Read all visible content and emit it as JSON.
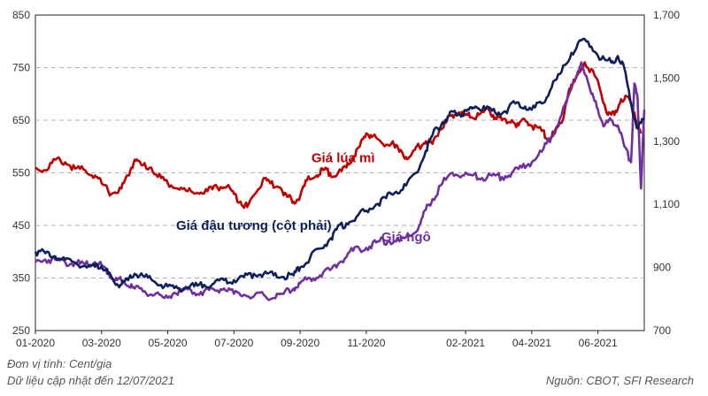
{
  "footer": {
    "unit_note": "Đơn vị tính: Cent/giạ",
    "update_note": "Dữ liệu cập nhật đến 12/07/2021",
    "source_note": "Nguồn: CBOT, SFI Research"
  },
  "chart_data": {
    "type": "line",
    "x_ticks": [
      "01-2020",
      "03-2020",
      "05-2020",
      "07-2020",
      "09-2020",
      "11-2020",
      "02-2021",
      "04-2021",
      "06-2021"
    ],
    "x_tick_months": [
      0,
      2,
      4,
      6,
      8,
      10,
      13,
      15,
      17
    ],
    "x_range_months": [
      0,
      18.4
    ],
    "ylim_left": [
      250,
      850
    ],
    "yticks_left": [
      250,
      350,
      450,
      550,
      650,
      750,
      850
    ],
    "ylim_right": [
      700,
      1700
    ],
    "yticks_right_labels": [
      "700",
      "900",
      "1,100",
      "1,300",
      "1,500",
      "1,700"
    ],
    "yticks_right_values": [
      700,
      900,
      1100,
      1300,
      1500,
      1700
    ],
    "gridlines": [
      350,
      450,
      550,
      650,
      750
    ],
    "series": [
      {
        "name": "Giá lúa mì",
        "axis": "left",
        "color": "#c00000",
        "points": [
          [
            0,
            560
          ],
          [
            0.3,
            555
          ],
          [
            0.6,
            575
          ],
          [
            0.9,
            570
          ],
          [
            1.2,
            558
          ],
          [
            1.5,
            555
          ],
          [
            1.8,
            545
          ],
          [
            2.0,
            530
          ],
          [
            2.3,
            510
          ],
          [
            2.6,
            520
          ],
          [
            2.8,
            545
          ],
          [
            3.0,
            575
          ],
          [
            3.2,
            565
          ],
          [
            3.5,
            560
          ],
          [
            3.8,
            540
          ],
          [
            4.0,
            530
          ],
          [
            4.3,
            520
          ],
          [
            4.6,
            515
          ],
          [
            4.9,
            512
          ],
          [
            5.2,
            515
          ],
          [
            5.5,
            522
          ],
          [
            5.8,
            525
          ],
          [
            6.0,
            510
          ],
          [
            6.2,
            495
          ],
          [
            6.4,
            485
          ],
          [
            6.7,
            515
          ],
          [
            6.9,
            540
          ],
          [
            7.1,
            530
          ],
          [
            7.4,
            522
          ],
          [
            7.6,
            505
          ],
          [
            7.8,
            495
          ],
          [
            8.0,
            505
          ],
          [
            8.2,
            535
          ],
          [
            8.5,
            545
          ],
          [
            8.7,
            555
          ],
          [
            8.9,
            550
          ],
          [
            9.1,
            545
          ],
          [
            9.4,
            560
          ],
          [
            9.6,
            580
          ],
          [
            9.8,
            600
          ],
          [
            10.0,
            625
          ],
          [
            10.2,
            620
          ],
          [
            10.5,
            605
          ],
          [
            10.8,
            610
          ],
          [
            11.0,
            590
          ],
          [
            11.2,
            580
          ],
          [
            11.4,
            590
          ],
          [
            11.6,
            600
          ],
          [
            11.8,
            610
          ],
          [
            12.0,
            605
          ],
          [
            12.2,
            630
          ],
          [
            12.4,
            645
          ],
          [
            12.6,
            660
          ],
          [
            12.8,
            665
          ],
          [
            13.0,
            660
          ],
          [
            13.2,
            655
          ],
          [
            13.4,
            660
          ],
          [
            13.7,
            670
          ],
          [
            13.9,
            655
          ],
          [
            14.1,
            650
          ],
          [
            14.4,
            650
          ],
          [
            14.6,
            640
          ],
          [
            14.8,
            650
          ],
          [
            15.0,
            640
          ],
          [
            15.3,
            630
          ],
          [
            15.5,
            615
          ],
          [
            15.7,
            625
          ],
          [
            15.9,
            645
          ],
          [
            16.1,
            700
          ],
          [
            16.3,
            725
          ],
          [
            16.6,
            760
          ],
          [
            16.9,
            735
          ],
          [
            17.1,
            700
          ],
          [
            17.3,
            660
          ],
          [
            17.5,
            660
          ],
          [
            17.7,
            690
          ],
          [
            17.9,
            695
          ],
          [
            18.1,
            665
          ],
          [
            18.3,
            625
          ]
        ]
      },
      {
        "name": "Giá đậu tương (cột phải)",
        "axis": "right",
        "color": "#0d1f5c",
        "points": [
          [
            0,
            950
          ],
          [
            0.3,
            945
          ],
          [
            0.6,
            935
          ],
          [
            0.9,
            925
          ],
          [
            1.2,
            915
          ],
          [
            1.5,
            905
          ],
          [
            1.8,
            902
          ],
          [
            2.0,
            905
          ],
          [
            2.2,
            880
          ],
          [
            2.4,
            850
          ],
          [
            2.6,
            845
          ],
          [
            2.8,
            860
          ],
          [
            3.0,
            880
          ],
          [
            3.3,
            870
          ],
          [
            3.6,
            855
          ],
          [
            3.9,
            840
          ],
          [
            4.2,
            835
          ],
          [
            4.5,
            835
          ],
          [
            4.8,
            840
          ],
          [
            5.1,
            845
          ],
          [
            5.4,
            850
          ],
          [
            5.7,
            860
          ],
          [
            6.0,
            860
          ],
          [
            6.3,
            870
          ],
          [
            6.6,
            880
          ],
          [
            6.9,
            880
          ],
          [
            7.2,
            875
          ],
          [
            7.5,
            870
          ],
          [
            7.8,
            875
          ],
          [
            8.0,
            900
          ],
          [
            8.3,
            930
          ],
          [
            8.6,
            960
          ],
          [
            8.9,
            990
          ],
          [
            9.1,
            1020
          ],
          [
            9.4,
            1040
          ],
          [
            9.7,
            1060
          ],
          [
            10.0,
            1080
          ],
          [
            10.3,
            1100
          ],
          [
            10.6,
            1120
          ],
          [
            10.9,
            1140
          ],
          [
            11.2,
            1160
          ],
          [
            11.5,
            1200
          ],
          [
            11.8,
            1270
          ],
          [
            12.0,
            1320
          ],
          [
            12.3,
            1360
          ],
          [
            12.5,
            1380
          ],
          [
            12.7,
            1390
          ],
          [
            12.9,
            1385
          ],
          [
            13.1,
            1400
          ],
          [
            13.3,
            1410
          ],
          [
            13.6,
            1400
          ],
          [
            13.9,
            1390
          ],
          [
            14.2,
            1395
          ],
          [
            14.5,
            1420
          ],
          [
            14.8,
            1410
          ],
          [
            15.0,
            1400
          ],
          [
            15.3,
            1420
          ],
          [
            15.6,
            1470
          ],
          [
            15.9,
            1520
          ],
          [
            16.2,
            1580
          ],
          [
            16.5,
            1620
          ],
          [
            16.8,
            1600
          ],
          [
            17.1,
            1560
          ],
          [
            17.4,
            1550
          ],
          [
            17.6,
            1570
          ],
          [
            17.8,
            1530
          ],
          [
            18.0,
            1420
          ],
          [
            18.2,
            1340
          ],
          [
            18.4,
            1370
          ]
        ]
      },
      {
        "name": "Giá ngô",
        "axis": "left",
        "color": "#7030a0",
        "points": [
          [
            0,
            380
          ],
          [
            0.3,
            385
          ],
          [
            0.6,
            385
          ],
          [
            0.9,
            380
          ],
          [
            1.2,
            378
          ],
          [
            1.5,
            375
          ],
          [
            1.8,
            380
          ],
          [
            2.0,
            375
          ],
          [
            2.2,
            360
          ],
          [
            2.4,
            345
          ],
          [
            2.6,
            345
          ],
          [
            2.8,
            335
          ],
          [
            3.0,
            330
          ],
          [
            3.3,
            325
          ],
          [
            3.6,
            318
          ],
          [
            3.9,
            312
          ],
          [
            4.2,
            322
          ],
          [
            4.5,
            328
          ],
          [
            4.8,
            322
          ],
          [
            5.1,
            325
          ],
          [
            5.4,
            328
          ],
          [
            5.7,
            330
          ],
          [
            6.0,
            320
          ],
          [
            6.3,
            318
          ],
          [
            6.6,
            315
          ],
          [
            6.9,
            318
          ],
          [
            7.2,
            312
          ],
          [
            7.5,
            320
          ],
          [
            7.8,
            330
          ],
          [
            8.0,
            340
          ],
          [
            8.3,
            350
          ],
          [
            8.6,
            355
          ],
          [
            8.9,
            365
          ],
          [
            9.2,
            380
          ],
          [
            9.5,
            400
          ],
          [
            9.8,
            405
          ],
          [
            10.1,
            410
          ],
          [
            10.4,
            420
          ],
          [
            10.7,
            420
          ],
          [
            11.0,
            420
          ],
          [
            11.3,
            430
          ],
          [
            11.6,
            450
          ],
          [
            11.8,
            480
          ],
          [
            12.0,
            500
          ],
          [
            12.3,
            530
          ],
          [
            12.6,
            550
          ],
          [
            12.9,
            545
          ],
          [
            13.2,
            545
          ],
          [
            13.5,
            540
          ],
          [
            13.8,
            545
          ],
          [
            14.1,
            542
          ],
          [
            14.4,
            550
          ],
          [
            14.7,
            560
          ],
          [
            15.0,
            570
          ],
          [
            15.3,
            590
          ],
          [
            15.6,
            620
          ],
          [
            15.9,
            660
          ],
          [
            16.2,
            710
          ],
          [
            16.5,
            760
          ],
          [
            16.8,
            700
          ],
          [
            17.0,
            670
          ],
          [
            17.2,
            640
          ],
          [
            17.4,
            650
          ],
          [
            17.6,
            640
          ],
          [
            17.8,
            600
          ],
          [
            18.0,
            570
          ],
          [
            18.1,
            720
          ],
          [
            18.2,
            690
          ],
          [
            18.3,
            520
          ],
          [
            18.4,
            670
          ]
        ]
      }
    ],
    "labels": [
      {
        "text": "Giá lúa mì",
        "series": 0,
        "month": 9.3,
        "value": 570
      },
      {
        "text": "Giá đậu tương (cột phải)",
        "series": 1,
        "month": 6.6,
        "value": 1020,
        "axis": "right"
      },
      {
        "text": "Giá ngô",
        "series": 2,
        "month": 11.2,
        "value": 420
      }
    ]
  }
}
